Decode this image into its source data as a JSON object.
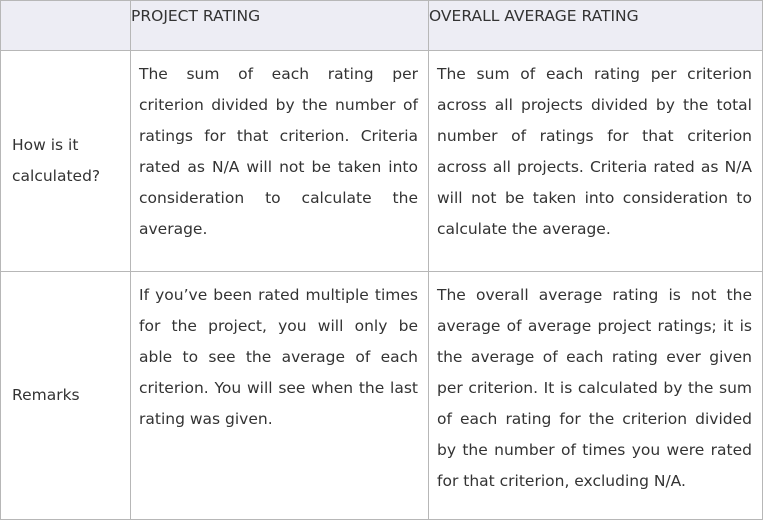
{
  "table": {
    "headers": [
      "",
      "PROJECT RATING",
      "OVERALL AVERAGE RATING"
    ],
    "rows": [
      {
        "label": "How is it calculated?",
        "project": "The sum of each rating per criterion divided by the number of ratings for that criterion. Criteria rated as N/A will not be taken into consideration to calculate the average.",
        "overall": "The sum of each rating per criterion across all projects divided by the total number of ratings for that criterion across all projects. Criteria rated as N/A will not be taken into consideration to calculate the average."
      },
      {
        "label": "Remarks",
        "project": "If you’ve been rated multiple times for the project, you will only be able to see the average of each criterion. You will see when the last rating was given.",
        "overall": "The overall average rating is not the average of average project ratings; it is the average of each rating ever given per criterion. It is calculated by the sum of each rating for the criterion divided by the number of times you were rated for that criterion, excluding N/A."
      }
    ]
  }
}
